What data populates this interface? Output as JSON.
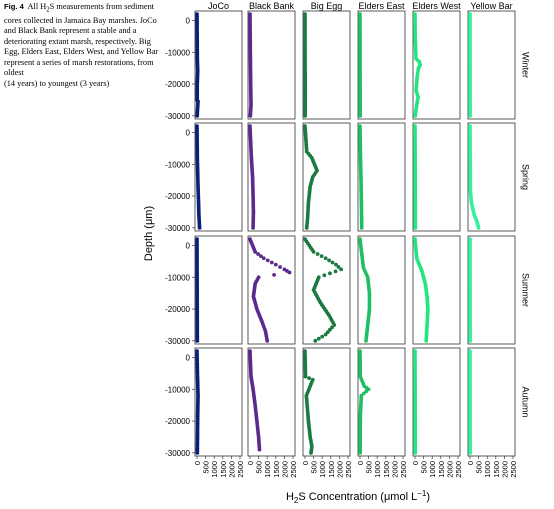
{
  "caption": {
    "label": "Fig. 4",
    "text_before": "All H",
    "text_sub": "2",
    "text_after": "S measurements from sediment cores collected in Jamaica Bay marshes. JoCo and Black Bank represent a stable and a deteriorating extant marsh, respectively. Big Egg, Elders East, Elders West, and Yellow Bar represent a series of marsh restorations, from oldest",
    "text_last": "(14 years) to youngest (3 years)"
  },
  "chart_data": {
    "type": "scatter",
    "facet_columns": [
      "JoCo",
      "Black Bank",
      "Big Egg",
      "Elders East",
      "Elders West",
      "Yellow Bar"
    ],
    "facet_rows": [
      "Winter",
      "Spring",
      "Summer",
      "Autumn"
    ],
    "colors": {
      "JoCo": "#0b1f78",
      "Black Bank": "#5a2a8e",
      "Big Egg": "#1a7a40",
      "Elders East": "#1fbf63",
      "Elders West": "#22e67f",
      "Yellow Bar": "#33f29a"
    },
    "xlabel_main": "H",
    "xlabel_sub": "2",
    "xlabel_rest": "S Concentration (μmol L",
    "xlabel_sup": "−1",
    "xlabel_end": ")",
    "ylabel": "Depth (μm)",
    "xlim": [
      0,
      2500
    ],
    "ylim": [
      -31000,
      3000
    ],
    "xticks": [
      0,
      500,
      1000,
      1500,
      2000,
      2500
    ],
    "xtick_labels": [
      "0",
      "500",
      "1000",
      "1500",
      "2000",
      "2500"
    ],
    "yticks": [
      0,
      -10000,
      -20000,
      -30000
    ],
    "ytick_labels": [
      "0",
      "-10000",
      "-20000",
      "-30000"
    ],
    "grid": false,
    "legend": "none",
    "profiles": {
      "Winter": {
        "JoCo": [
          [
            0,
            2000
          ],
          [
            20,
            -12000
          ],
          [
            40,
            -16000
          ],
          [
            15,
            -20000
          ],
          [
            10,
            -25000
          ],
          [
            60,
            -25500
          ],
          [
            10,
            -30000
          ]
        ],
        "Black Bank": [
          [
            0,
            2000
          ],
          [
            20,
            -10000
          ],
          [
            40,
            -20000
          ],
          [
            60,
            -26500
          ],
          [
            20,
            -30000
          ]
        ],
        "Big Egg": [
          [
            0,
            2000
          ],
          [
            5,
            -15000
          ],
          [
            15,
            -22000
          ],
          [
            10,
            -30000
          ]
        ],
        "Elders East": [
          [
            0,
            2000
          ],
          [
            5,
            -15000
          ],
          [
            10,
            -30000
          ]
        ],
        "Elders West": [
          [
            0,
            2000
          ],
          [
            10,
            -5000
          ],
          [
            40,
            -9000
          ],
          [
            60,
            -12000
          ],
          [
            250,
            -13000
          ],
          [
            300,
            -14000
          ],
          [
            200,
            -15000
          ],
          [
            120,
            -18000
          ],
          [
            60,
            -22000
          ],
          [
            180,
            -24000
          ],
          [
            60,
            -28000
          ],
          [
            20,
            -30000
          ]
        ],
        "Yellow Bar": [
          [
            0,
            2000
          ],
          [
            5,
            -15000
          ],
          [
            10,
            -30000
          ]
        ]
      },
      "Spring": {
        "JoCo": [
          [
            0,
            2000
          ],
          [
            20,
            -8000
          ],
          [
            60,
            -17000
          ],
          [
            90,
            -22000
          ],
          [
            110,
            -26000
          ],
          [
            150,
            -30000
          ]
        ],
        "Black Bank": [
          [
            0,
            2000
          ],
          [
            80,
            -8000
          ],
          [
            150,
            -14000
          ],
          [
            180,
            -20000
          ],
          [
            200,
            -25000
          ],
          [
            180,
            -30000
          ]
        ],
        "Big Egg": [
          [
            0,
            2000
          ],
          [
            100,
            -6000
          ],
          [
            400,
            -8000
          ],
          [
            550,
            -10000
          ],
          [
            700,
            -12000
          ],
          [
            450,
            -14000
          ],
          [
            300,
            -17000
          ],
          [
            200,
            -22000
          ],
          [
            150,
            -27000
          ],
          [
            100,
            -30000
          ]
        ],
        "Elders East": [
          [
            0,
            2000
          ],
          [
            30,
            -8000
          ],
          [
            60,
            -15000
          ],
          [
            80,
            -22000
          ],
          [
            100,
            -30000
          ]
        ],
        "Elders West": [
          [
            0,
            2000
          ],
          [
            15,
            -15000
          ],
          [
            20,
            -30000
          ]
        ],
        "Yellow Bar": [
          [
            0,
            2000
          ],
          [
            20,
            -18000
          ],
          [
            80,
            -22000
          ],
          [
            250,
            -26000
          ],
          [
            400,
            -28000
          ],
          [
            500,
            -30000
          ]
        ]
      },
      "Summer": {
        "JoCo": [
          [
            0,
            2000
          ],
          [
            10,
            -15000
          ],
          [
            20,
            -30000
          ]
        ],
        "Black Bank": [
          [
            0,
            2000
          ],
          [
            300,
            -2000
          ],
          [
            800,
            -4000
          ],
          [
            1500,
            -6000
          ],
          [
            2000,
            -7500
          ],
          [
            2300,
            -8500
          ],
          [
            500,
            -10000
          ],
          [
            300,
            -12000
          ],
          [
            200,
            -16000
          ],
          [
            400,
            -20000
          ],
          [
            700,
            -24000
          ],
          [
            900,
            -27000
          ],
          [
            1000,
            -30000
          ]
        ],
        "Big Egg": [
          [
            0,
            2000
          ],
          [
            500,
            -2000
          ],
          [
            1200,
            -4000
          ],
          [
            1800,
            -6000
          ],
          [
            2100,
            -7500
          ],
          [
            800,
            -10000
          ],
          [
            500,
            -14000
          ],
          [
            900,
            -18000
          ],
          [
            1400,
            -22000
          ],
          [
            1700,
            -25000
          ],
          [
            1200,
            -28000
          ],
          [
            600,
            -30000
          ]
        ],
        "Elders East": [
          [
            0,
            2000
          ],
          [
            200,
            -7000
          ],
          [
            450,
            -10000
          ],
          [
            550,
            -15000
          ],
          [
            550,
            -20000
          ],
          [
            450,
            -25000
          ],
          [
            350,
            -30000
          ]
        ],
        "Elders West": [
          [
            0,
            2000
          ],
          [
            100,
            -4000
          ],
          [
            400,
            -8000
          ],
          [
            600,
            -12000
          ],
          [
            700,
            -16000
          ],
          [
            750,
            -20000
          ],
          [
            700,
            -25000
          ],
          [
            650,
            -30000
          ]
        ],
        "Yellow Bar": [
          [
            0,
            2000
          ],
          [
            5,
            -15000
          ],
          [
            10,
            -30000
          ]
        ]
      },
      "Autumn": {
        "JoCo": [
          [
            0,
            2000
          ],
          [
            30,
            -6000
          ],
          [
            60,
            -12000
          ],
          [
            40,
            -18000
          ],
          [
            30,
            -25000
          ],
          [
            20,
            -30000
          ]
        ],
        "Black Bank": [
          [
            0,
            2000
          ],
          [
            60,
            -6000
          ],
          [
            180,
            -10000
          ],
          [
            300,
            -15000
          ],
          [
            400,
            -20000
          ],
          [
            500,
            -25000
          ],
          [
            550,
            -29000
          ]
        ],
        "Big Egg": [
          [
            0,
            2000
          ],
          [
            30,
            -6000
          ],
          [
            450,
            -7000
          ],
          [
            80,
            -12000
          ],
          [
            200,
            -20000
          ],
          [
            300,
            -25000
          ],
          [
            400,
            -28000
          ],
          [
            350,
            -30000
          ]
        ],
        "Elders East": [
          [
            0,
            2000
          ],
          [
            20,
            -6000
          ],
          [
            250,
            -9000
          ],
          [
            500,
            -10000
          ],
          [
            80,
            -12000
          ],
          [
            20,
            -18000
          ],
          [
            10,
            -30000
          ]
        ],
        "Elders West": [
          [
            0,
            2000
          ],
          [
            10,
            -15000
          ],
          [
            15,
            -30000
          ]
        ],
        "Yellow Bar": [
          [
            0,
            2000
          ],
          [
            5,
            -15000
          ],
          [
            10,
            -30000
          ]
        ]
      }
    }
  }
}
